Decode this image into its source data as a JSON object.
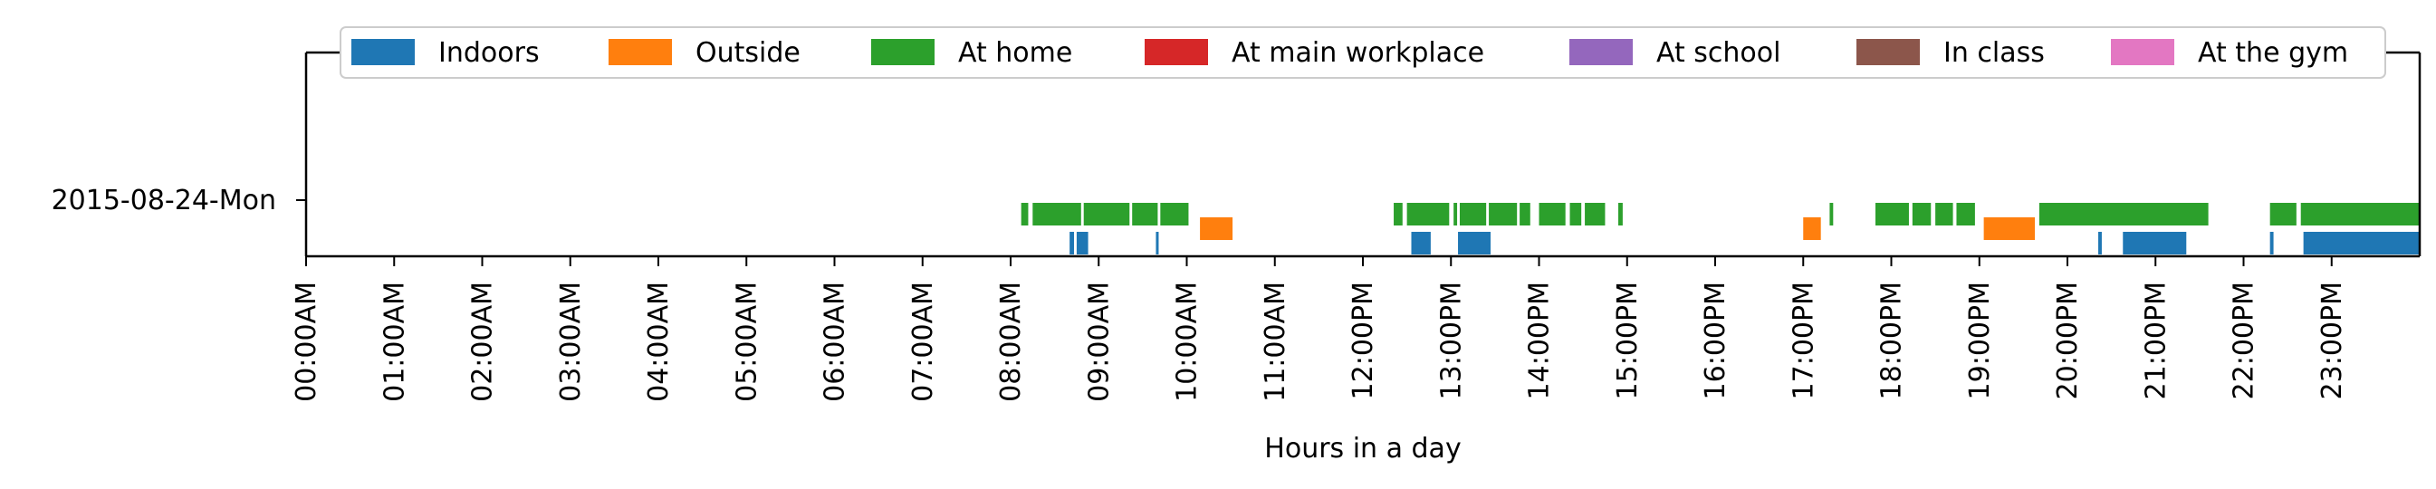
{
  "chart_data": {
    "type": "timeline",
    "xlabel": "Hours in a day",
    "ylabel": "",
    "xlim": [
      0,
      24
    ],
    "x_ticks": [
      "00:00AM",
      "01:00AM",
      "02:00AM",
      "03:00AM",
      "04:00AM",
      "05:00AM",
      "06:00AM",
      "07:00AM",
      "08:00AM",
      "09:00AM",
      "10:00AM",
      "11:00AM",
      "12:00PM",
      "13:00PM",
      "14:00PM",
      "15:00PM",
      "16:00PM",
      "17:00PM",
      "18:00PM",
      "19:00PM",
      "20:00PM",
      "21:00PM",
      "22:00PM",
      "23:00PM"
    ],
    "y_categories": [
      "2015-08-24-Mon"
    ],
    "legend_position": "top",
    "grid": false,
    "series": [
      {
        "name": "Indoors",
        "color": "#1f77b4",
        "intervals": [
          [
            8.67,
            8.72
          ],
          [
            8.75,
            8.88
          ],
          [
            9.65,
            9.68
          ],
          [
            12.55,
            12.77
          ],
          [
            13.08,
            13.45
          ],
          [
            20.35,
            20.39
          ],
          [
            20.63,
            21.35
          ],
          [
            22.3,
            22.34
          ],
          [
            22.68,
            24.0
          ]
        ]
      },
      {
        "name": "Outside",
        "color": "#ff7f0e",
        "intervals": [
          [
            10.15,
            10.52
          ],
          [
            17.0,
            17.2
          ],
          [
            19.05,
            19.63
          ]
        ]
      },
      {
        "name": "At home",
        "color": "#2ca02c",
        "intervals": [
          [
            8.12,
            8.2
          ],
          [
            8.25,
            8.8
          ],
          [
            8.83,
            9.35
          ],
          [
            9.38,
            9.67
          ],
          [
            9.7,
            10.02
          ],
          [
            12.35,
            12.45
          ],
          [
            12.5,
            12.98
          ],
          [
            13.03,
            13.07
          ],
          [
            13.1,
            13.4
          ],
          [
            13.43,
            13.75
          ],
          [
            13.78,
            13.9
          ],
          [
            14.0,
            14.3
          ],
          [
            14.35,
            14.48
          ],
          [
            14.52,
            14.75
          ],
          [
            14.9,
            14.95
          ],
          [
            17.3,
            17.34
          ],
          [
            17.82,
            18.2
          ],
          [
            18.24,
            18.45
          ],
          [
            18.5,
            18.7
          ],
          [
            18.74,
            18.95
          ],
          [
            19.68,
            21.6
          ],
          [
            22.3,
            22.6
          ],
          [
            22.65,
            24.0
          ]
        ]
      },
      {
        "name": "At main workplace",
        "color": "#d62728",
        "intervals": []
      },
      {
        "name": "At school",
        "color": "#9467bd",
        "intervals": []
      },
      {
        "name": "In class",
        "color": "#8c564b",
        "intervals": []
      },
      {
        "name": "At the gym",
        "color": "#e377c2",
        "intervals": []
      }
    ]
  }
}
